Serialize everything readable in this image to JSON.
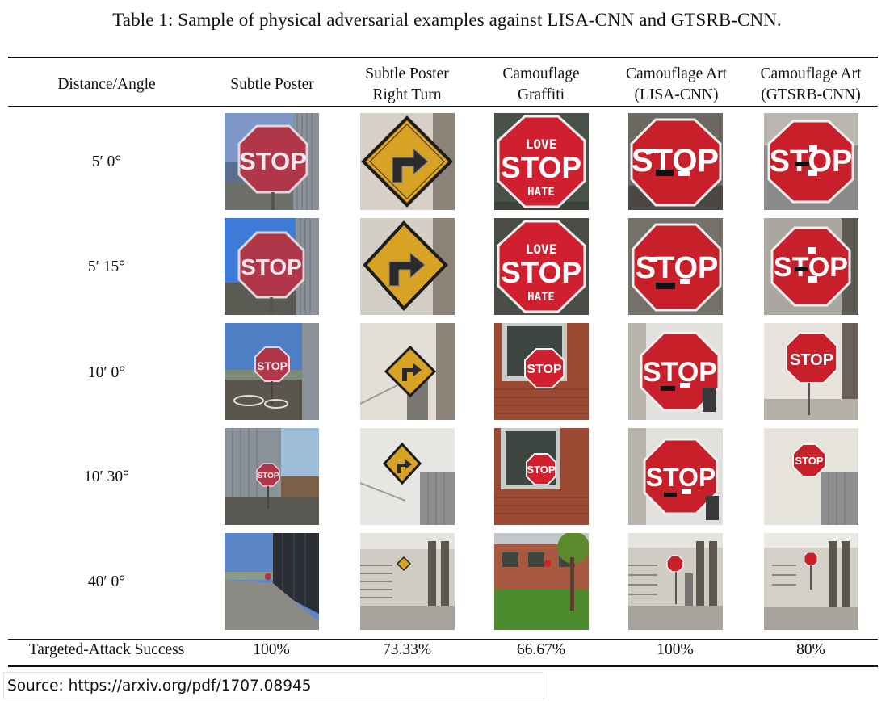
{
  "caption": "Table 1: Sample of physical adversarial examples against LISA-CNN and GTSRB-CNN.",
  "headers": {
    "col0": [
      "Distance/Angle"
    ],
    "col1": [
      "Subtle Poster"
    ],
    "col2": [
      "Subtle Poster",
      "Right Turn"
    ],
    "col3": [
      "Camouflage",
      "Graffiti"
    ],
    "col4": [
      "Camouflage Art",
      "(LISA-CNN)"
    ],
    "col5": [
      "Camouflage Art",
      "(GTSRB-CNN)"
    ]
  },
  "rows": [
    {
      "label": "5′ 0°"
    },
    {
      "label": "5′ 15°"
    },
    {
      "label": "10′ 0°"
    },
    {
      "label": "10′ 30°"
    },
    {
      "label": "40′ 0°"
    }
  ],
  "sign_text": {
    "stop": "STOP",
    "graffiti_top": "LOVE",
    "graffiti_bottom": "HATE"
  },
  "footer": {
    "label": "Targeted-Attack Success",
    "values": [
      "100%",
      "73.33%",
      "66.67%",
      "100%",
      "80%"
    ]
  },
  "source": "Source: https://arxiv.org/pdf/1707.08945",
  "colors": {
    "stop_red": "#c8202a",
    "diamond_yellow": "#d8a324",
    "sky_blue": "#4e7fc4",
    "brick": "#9b4a34",
    "floor_gray": "#a7a39c"
  }
}
